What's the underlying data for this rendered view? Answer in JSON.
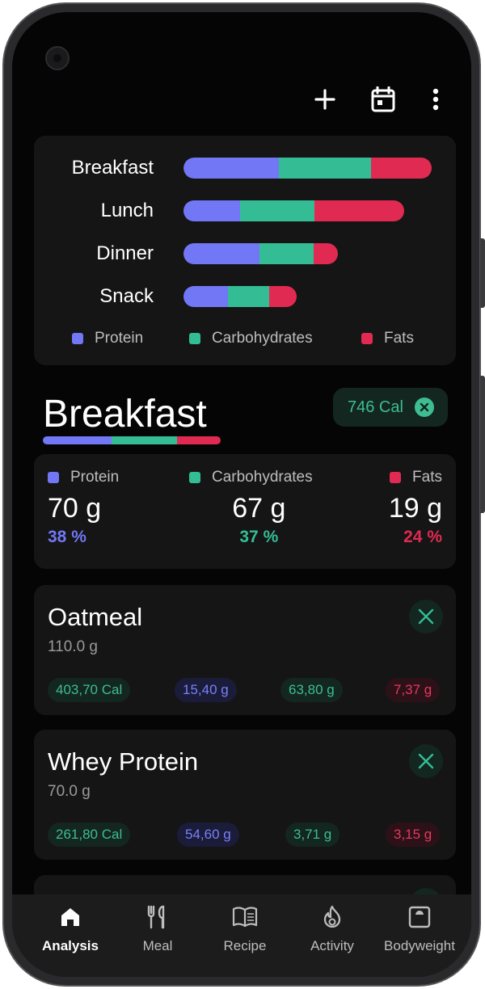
{
  "colors": {
    "protein": "#7277f5",
    "carbohydrates": "#34bd95",
    "fats": "#e12a52",
    "background": "#050505",
    "card": "#151515"
  },
  "overview_chart": {
    "rows": [
      {
        "label": "Breakfast"
      },
      {
        "label": "Lunch"
      },
      {
        "label": "Dinner"
      },
      {
        "label": "Snack"
      }
    ],
    "legend": {
      "protein": "Protein",
      "carbohydrates": "Carbohydrates",
      "fats": "Fats"
    }
  },
  "selected_meal": {
    "title": "Breakfast",
    "calories": "746 Cal",
    "protein_label": "Protein",
    "protein_value": "70 g",
    "protein_pct": "38 %",
    "carbs_label": "Carbohydrates",
    "carbs_value": "67 g",
    "carbs_pct": "37 %",
    "fats_label": "Fats",
    "fats_value": "19 g",
    "fats_pct": "24 %"
  },
  "foods": [
    {
      "name": "Oatmeal",
      "weight": "110.0 g",
      "calories": "403,70 Cal",
      "protein": "15,40 g",
      "carbs": "63,80 g",
      "fats": "7,37 g"
    },
    {
      "name": "Whey Protein",
      "weight": "70.0 g",
      "calories": "261,80 Cal",
      "protein": "54,60 g",
      "carbs": "3,71 g",
      "fats": "3,15 g"
    }
  ],
  "nav": [
    {
      "label": "Analysis",
      "icon": "home-icon"
    },
    {
      "label": "Meal",
      "icon": "fork-knife-icon"
    },
    {
      "label": "Recipe",
      "icon": "book-icon"
    },
    {
      "label": "Activity",
      "icon": "flame-icon"
    },
    {
      "label": "Bodyweight",
      "icon": "scale-icon"
    }
  ],
  "icons": {
    "add": "plus-icon",
    "calendar": "calendar-icon",
    "more": "more-vert-icon"
  }
}
